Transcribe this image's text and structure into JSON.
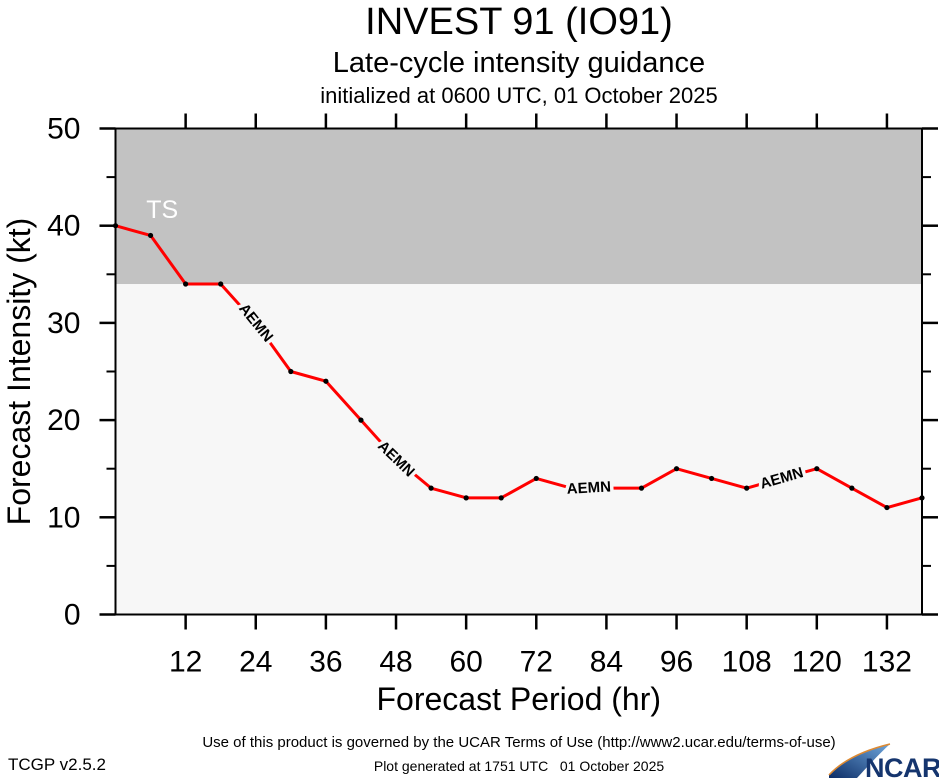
{
  "header": {
    "title": "INVEST 91 (IO91)",
    "subtitle": "Late-cycle intensity guidance",
    "initialization": "initialized at 0600 UTC, 01 October 2025"
  },
  "footer": {
    "terms": "Use of this product is governed by the UCAR Terms of Use (http://www2.ucar.edu/terms-of-use)",
    "version": "TCGP v2.5.2",
    "generated": "Plot generated at 1751 UTC   01 October 2025",
    "logo_text": "NCAR"
  },
  "chart_data": {
    "type": "line",
    "title": "INVEST 91 (IO91)",
    "subtitle": "Late-cycle intensity guidance",
    "initialized": "initialized at 0600 UTC, 01 October 2025",
    "xlabel": "Forecast Period (hr)",
    "ylabel": "Forecast Intensity (kt)",
    "xlim": [
      0,
      138
    ],
    "ylim": [
      0,
      50
    ],
    "x_ticks": [
      12,
      24,
      36,
      48,
      60,
      72,
      84,
      96,
      108,
      120,
      132
    ],
    "y_ticks_major": [
      0,
      10,
      20,
      30,
      40,
      50
    ],
    "y_ticks_minor": [
      5,
      15,
      25,
      35,
      45
    ],
    "grid": false,
    "ts_threshold_kt": 34,
    "ts_label": "TS",
    "ts_label_pos": {
      "hr": 8,
      "kt": 40.8
    },
    "series": [
      {
        "name": "AEMN",
        "color": "#ff0000",
        "x": [
          0,
          6,
          12,
          18,
          24,
          30,
          36,
          42,
          48,
          54,
          60,
          66,
          72,
          78,
          84,
          90,
          96,
          102,
          108,
          114,
          120,
          126,
          132,
          138
        ],
        "values": [
          40,
          39,
          34,
          34,
          30,
          25,
          24,
          20,
          16,
          13,
          12,
          12,
          14,
          13,
          13,
          13,
          15,
          14,
          13,
          14,
          15,
          13,
          11,
          12
        ],
        "hidden_marker_x": [
          24,
          48,
          78,
          84,
          114
        ],
        "line_labels": [
          {
            "hr": 24,
            "rotation": 51
          },
          {
            "hr": 48,
            "rotation": 44
          },
          {
            "hr": 81,
            "rotation": -3
          },
          {
            "hr": 114,
            "rotation": -16
          }
        ]
      }
    ],
    "colors": {
      "line": "#ff0000",
      "marker": "#000000",
      "ts_band": "#c2c2c2",
      "plot_bg": "#f7f7f7",
      "frame": "#000000",
      "ts_label": "#ffffff",
      "text": "#000000",
      "ncar_navy": "#15356e",
      "ncar_blue_dark": "#0d2d66",
      "ncar_blue_light": "#6ea6dc",
      "ncar_orange": "#dd8a33"
    }
  }
}
